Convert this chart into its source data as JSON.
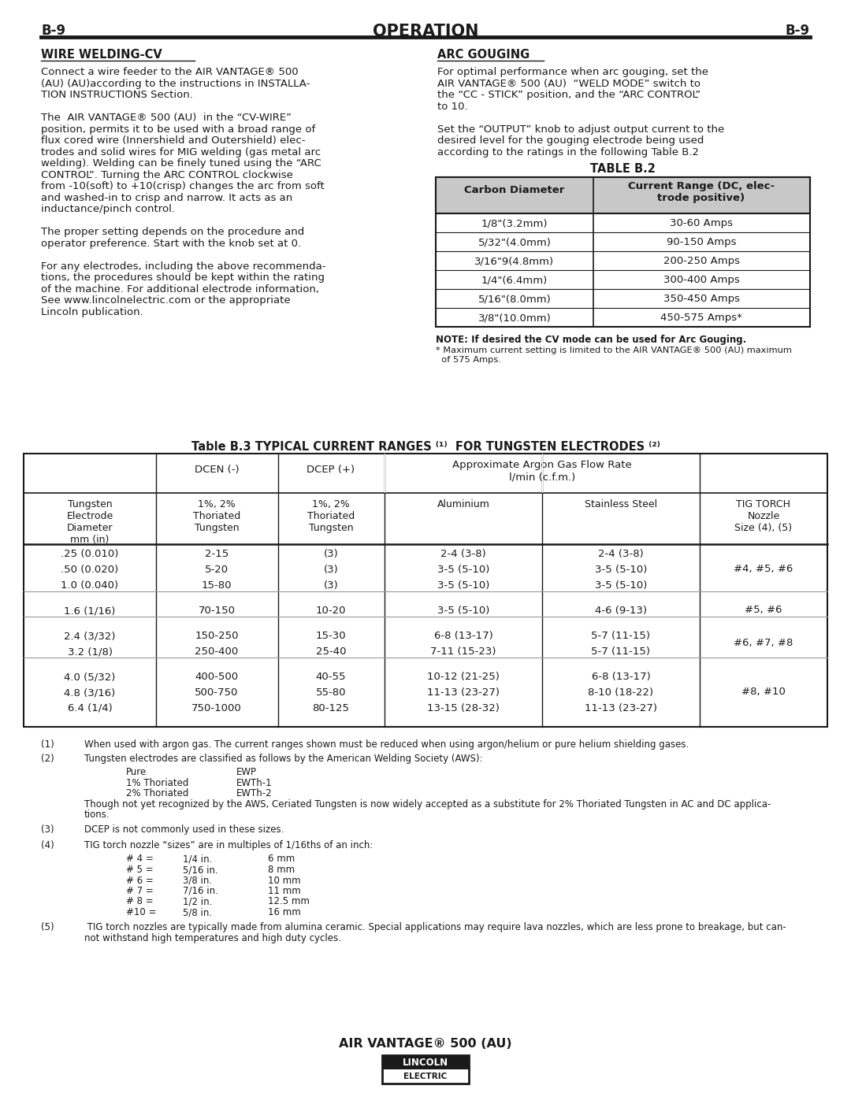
{
  "page_label": "B-9",
  "page_title": "OPERATION",
  "bg_color": "#ffffff",
  "text_color": "#1a1a1a",
  "wire_welding_title": "WIRE WELDING-CV",
  "wire_welding_paragraphs": [
    "Connect a wire feeder to the AIR VANTAGE® 500\n(AU) (AU)according to the instructions in INSTALLA-\nTION INSTRUCTIONS Section.",
    "The  AIR VANTAGE® 500 (AU)  in the “CV-WIRE”\nposition, permits it to be used with a broad range of\nflux cored wire (Innershield and Outershield) elec-\ntrodes and solid wires for MIG welding (gas metal arc\nwelding). Welding can be finely tuned using the “ARC\nCONTROL”. Turning the ARC CONTROL clockwise\nfrom -10(soft) to +10(crisp) changes the arc from soft\nand washed-in to crisp and narrow. It acts as an\ninductance/pinch control.",
    "The proper setting depends on the procedure and\noperator preference. Start with the knob set at 0.",
    "For any electrodes, including the above recommenda-\ntions, the procedures should be kept within the rating\nof the machine. For additional electrode information,\nSee www.lincolnelectric.com or the appropriate\nLincoln publication."
  ],
  "arc_gouging_title": "ARC GOUGING",
  "arc_gouging_paragraphs": [
    "For optimal performance when arc gouging, set the\nAIR VANTAGE® 500 (AU)  “WELD MODE” switch to\nthe “CC - STICK” position, and the “ARC CONTROL”\nto 10.",
    "Set the “OUTPUT” knob to adjust output current to the\ndesired level for the gouging electrode being used\naccording to the ratings in the following Table B.2"
  ],
  "table_b2_title": "TABLE B.2",
  "table_b2_headers": [
    "Carbon Diameter",
    "Current Range (DC, elec-\ntrode positive)"
  ],
  "table_b2_rows": [
    [
      "1/8\"(3.2mm)",
      "30-60 Amps"
    ],
    [
      "5/32\"(4.0mm)",
      "90-150 Amps"
    ],
    [
      "3/16\"9(4.8mm)",
      "200-250 Amps"
    ],
    [
      "1/4\"(6.4mm)",
      "300-400 Amps"
    ],
    [
      "5/16\"(8.0mm)",
      "350-450 Amps"
    ],
    [
      "3/8\"(10.0mm)",
      "450-575 Amps*"
    ]
  ],
  "table_b2_note": "NOTE: If desired the CV mode can be used for Arc Gouging.",
  "table_b2_footnote": "* Maximum current setting is limited to the AIR VANTAGE® 500 (AU) maximum\n  of 575 Amps.",
  "table_b3_title": "Table B.3 TYPICAL CURRENT RANGES ",
  "table_b3_title_sup1": "(1)",
  "table_b3_title_mid": "  FOR TUNGSTEN ELECTRODES ",
  "table_b3_title_sup2": "(2)",
  "table_b3_rows": [
    [
      ".25 (0.010)",
      "2-15",
      "(3)",
      "2-4 (3-8)",
      "2-4 (3-8)",
      "#4, #5, #6"
    ],
    [
      ".50 (0.020)",
      "5-20",
      "(3)",
      "3-5 (5-10)",
      "3-5 (5-10)",
      ""
    ],
    [
      "1.0 (0.040)",
      "15-80",
      "(3)",
      "3-5 (5-10)",
      "3-5 (5-10)",
      ""
    ],
    [
      "1.6 (1/16)",
      "70-150",
      "10-20",
      "3-5 (5-10)",
      "4-6 (9-13)",
      "#5, #6"
    ],
    [
      "2.4 (3/32)",
      "150-250",
      "15-30",
      "6-8 (13-17)",
      "5-7 (11-15)",
      "#6, #7, #8"
    ],
    [
      "3.2 (1/8)",
      "250-400",
      "25-40",
      "7-11 (15-23)",
      "5-7 (11-15)",
      ""
    ],
    [
      "4.0 (5/32)",
      "400-500",
      "40-55",
      "10-12 (21-25)",
      "6-8 (13-17)",
      "#8, #10"
    ],
    [
      "4.8 (3/16)",
      "500-750",
      "55-80",
      "11-13 (23-27)",
      "8-10 (18-22)",
      ""
    ],
    [
      "6.4 (1/4)",
      "750-1000",
      "80-125",
      "13-15 (28-32)",
      "11-13 (23-27)",
      ""
    ]
  ],
  "footer_text": "AIR VANTAGE® 500 (AU)",
  "lincoln_line1": "LINCOLN",
  "lincoln_line2": "®",
  "lincoln_line3": "ELECTRIC"
}
